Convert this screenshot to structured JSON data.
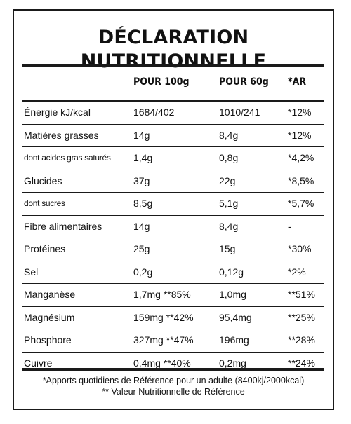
{
  "title": "DÉCLARATION NUTRITIONNELLE",
  "columns": {
    "per100": "POUR 100g",
    "per60": "POUR 60g",
    "ar": "*AR"
  },
  "rows": [
    {
      "name": "Énergie kJ/kcal",
      "per100": "1684/402",
      "per60": "1010/241",
      "ar": "*12%"
    },
    {
      "name": "Matières grasses",
      "per100": "14g",
      "per60": "8,4g",
      "ar": "*12%"
    },
    {
      "name": "dont acides gras saturés",
      "per100": "1,4g",
      "per60": "0,8g",
      "ar": "*4,2%"
    },
    {
      "name": "Glucides",
      "per100": "37g",
      "per60": "22g",
      "ar": "*8,5%"
    },
    {
      "name": "dont sucres",
      "per100": "8,5g",
      "per60": "5,1g",
      "ar": "*5,7%"
    },
    {
      "name": "Fibre alimentaires",
      "per100": "14g",
      "per60": "8,4g",
      "ar": "-"
    },
    {
      "name": "Protéines",
      "per100": "25g",
      "per60": "15g",
      "ar": "*30%"
    },
    {
      "name": "Sel",
      "per100": "0,2g",
      "per60": "0,12g",
      "ar": "*2%"
    },
    {
      "name": "Manganèse",
      "per100": "1,7mg **85%",
      "per60": "1,0mg",
      "ar": "**51%"
    },
    {
      "name": "Magnésium",
      "per100": "159mg **42%",
      "per60": "95,4mg",
      "ar": "**25%"
    },
    {
      "name": "Phosphore",
      "per100": "327mg **47%",
      "per60": "196mg",
      "ar": "**28%"
    },
    {
      "name": "Cuivre",
      "per100": "0,4mg **40%",
      "per60": "0,2mg",
      "ar": "**24%"
    }
  ],
  "footnotes": {
    "line1": "*Apports quotidiens de Référence pour un adulte (8400kj/2000kcal)",
    "line2": "** Valeur Nutritionnelle de Référence"
  }
}
